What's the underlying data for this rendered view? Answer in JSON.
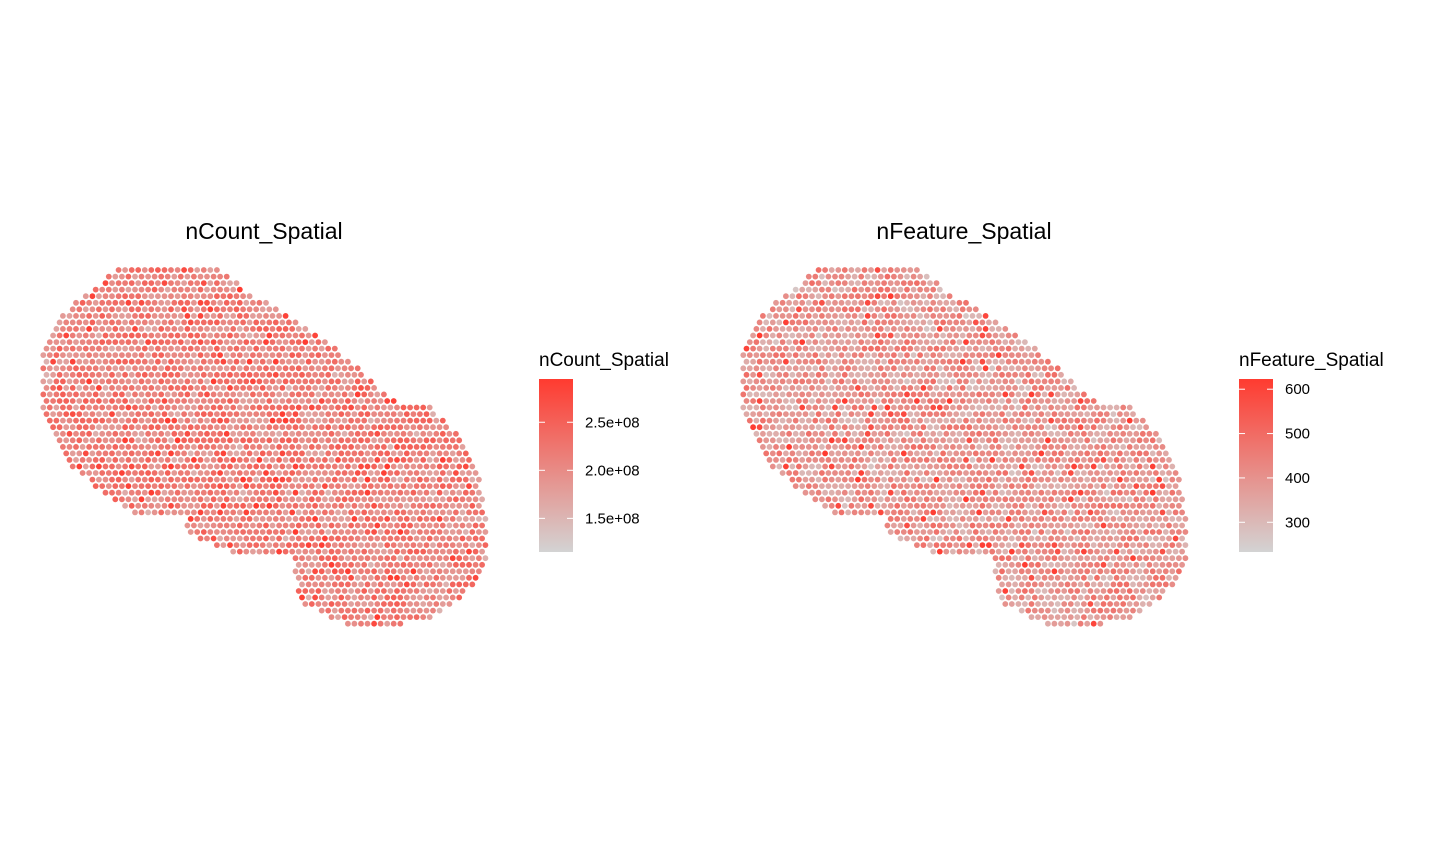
{
  "chart_data": [
    {
      "type": "scatter",
      "subtype": "spatial-spot-map",
      "title": "nCount_Spatial",
      "legend": {
        "title": "nCount_Spatial",
        "placement": "right",
        "ticks": [
          "1.5e+08",
          "2.0e+08",
          "2.5e+08"
        ],
        "tick_values": [
          150000000,
          200000000,
          250000000
        ],
        "range": [
          115000000,
          295000000
        ]
      },
      "color_low": "#d3d3d3",
      "color_high": "#ff3b30",
      "spot_color_typical": "#f07060"
    },
    {
      "type": "scatter",
      "subtype": "spatial-spot-map",
      "title": "nFeature_Spatial",
      "legend": {
        "title": "nFeature_Spatial",
        "placement": "right",
        "ticks": [
          "300",
          "400",
          "500",
          "600"
        ],
        "tick_values": [
          300,
          400,
          500,
          600
        ],
        "range": [
          233,
          623
        ]
      },
      "color_low": "#d3d3d3",
      "color_high": "#ff3b30",
      "spot_color_typical": "#ee8a7c"
    }
  ]
}
